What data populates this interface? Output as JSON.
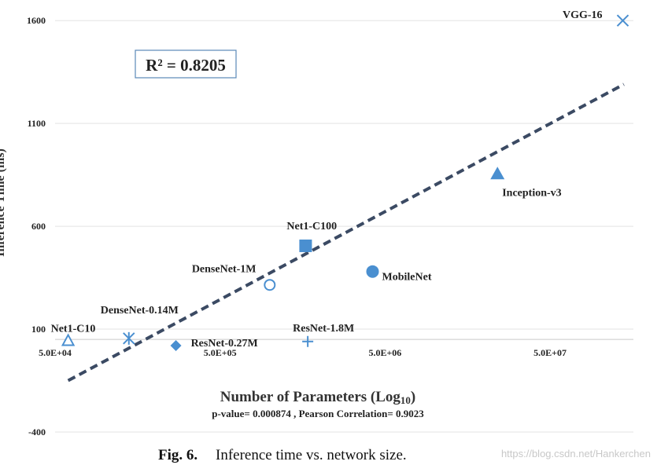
{
  "chart_data": {
    "type": "scatter",
    "ylabel": "Inference Time (ms)",
    "xlabel_main": "Number of Parameters (Log",
    "xlabel_sub": "10",
    "xlabel_close": ")",
    "stats_text": "p-value= 0.000874 , Pearson Correlation= 0.9023",
    "r_squared_label": "R² = 0.8205",
    "x_scale": "log10",
    "xlim": [
      50000,
      160000000
    ],
    "ylim": [
      -400,
      1700
    ],
    "x_ticks": [
      {
        "value": 50000,
        "label": "5.0E+04"
      },
      {
        "value": 500000,
        "label": "5.0E+05"
      },
      {
        "value": 5000000,
        "label": "5.0E+06"
      },
      {
        "value": 50000000,
        "label": "5.0E+07"
      }
    ],
    "y_ticks": [
      {
        "value": 1600,
        "label": "1600"
      },
      {
        "value": 1100,
        "label": "1100"
      },
      {
        "value": 600,
        "label": "600"
      },
      {
        "value": 100,
        "label": "100"
      },
      {
        "value": -400,
        "label": "-400"
      }
    ],
    "grid": true,
    "points": [
      {
        "name": "Net1-C10",
        "x": 60000,
        "y": 45,
        "marker": "triangle-open"
      },
      {
        "name": "DenseNet-0.14M",
        "x": 140000,
        "y": 55,
        "marker": "asterisk"
      },
      {
        "name": "ResNet-0.27M",
        "x": 270000,
        "y": 20,
        "marker": "diamond"
      },
      {
        "name": "DenseNet-1M",
        "x": 1000000,
        "y": 315,
        "marker": "circle-open"
      },
      {
        "name": "Net1-C100",
        "x": 1650000,
        "y": 505,
        "marker": "square"
      },
      {
        "name": "ResNet-1.8M",
        "x": 1700000,
        "y": 40,
        "marker": "plus"
      },
      {
        "name": "MobileNet",
        "x": 4200000,
        "y": 380,
        "marker": "circle"
      },
      {
        "name": "Inception-v3",
        "x": 24000000,
        "y": 855,
        "marker": "triangle"
      },
      {
        "name": "VGG-16",
        "x": 138000000,
        "y": 1600,
        "marker": "x"
      }
    ],
    "trendline": {
      "x": [
        60000,
        140000000
      ],
      "y": [
        -150,
        1290
      ],
      "style": "dashed"
    },
    "marker_color": "#4a8fd0",
    "trend_color": "#3b4a63"
  },
  "caption": {
    "label": "Fig. 6.",
    "text": "Inference time vs. network size."
  },
  "watermark": "https://blog.csdn.net/Hankerchen"
}
